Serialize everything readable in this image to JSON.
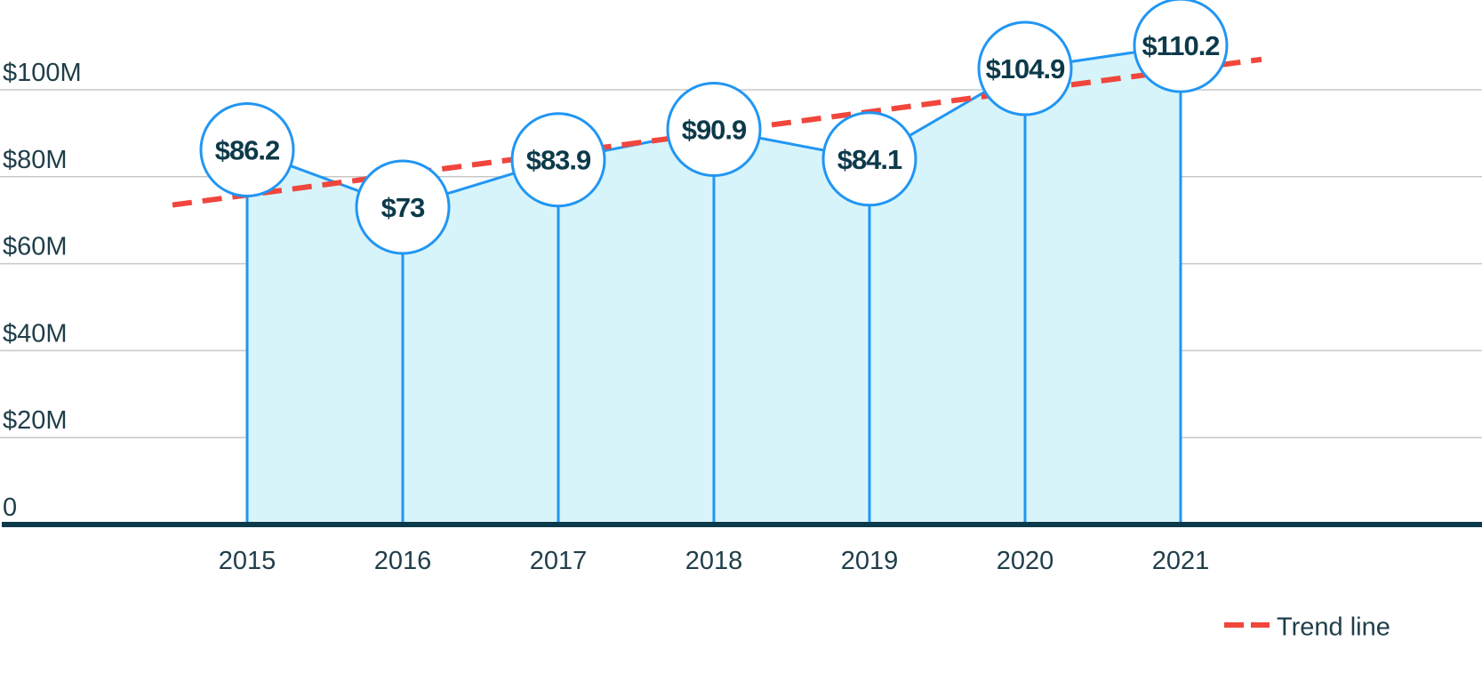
{
  "chart_data": {
    "type": "line",
    "x": [
      "2015",
      "2016",
      "2017",
      "2018",
      "2019",
      "2020",
      "2021"
    ],
    "series": [
      {
        "values": [
          86.2,
          73,
          83.9,
          90.9,
          84.1,
          104.9,
          110.2
        ],
        "labels": [
          "$86.2",
          "$73",
          "$83.9",
          "$90.9",
          "$84.1",
          "$104.9",
          "$110.2"
        ]
      }
    ],
    "trend_line": {
      "name": "Trend line",
      "start": 73.5,
      "end": 107
    },
    "yticks": [
      {
        "value": 0,
        "label": "0"
      },
      {
        "value": 20,
        "label": "$20M"
      },
      {
        "value": 40,
        "label": "$40M"
      },
      {
        "value": 60,
        "label": "$60M"
      },
      {
        "value": 80,
        "label": "$80M"
      },
      {
        "value": 100,
        "label": "$100M"
      }
    ],
    "ylim": [
      0,
      100
    ],
    "grid": true,
    "legend": "bottom-right",
    "colors": {
      "line": "#2196f3",
      "fill": "#d6f4fa",
      "trend": "#f0463c",
      "axis": "#0d3a4a",
      "grid": "#c8c8c8",
      "marker_fill": "#ffffff"
    }
  }
}
